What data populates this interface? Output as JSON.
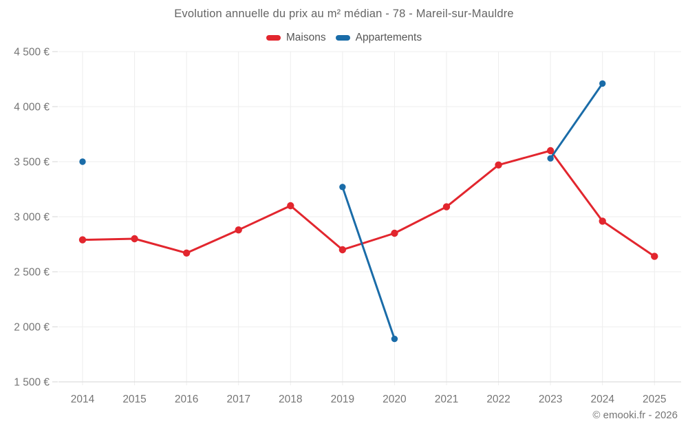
{
  "title": "Evolution annuelle du prix au m² médian - 78 - Mareil-sur-Mauldre",
  "legend": {
    "items": [
      {
        "label": "Maisons",
        "color": "#e2262e"
      },
      {
        "label": "Appartements",
        "color": "#1a6ca8"
      }
    ]
  },
  "copyright": "© emooki.fr - 2026",
  "colors": {
    "grid": "#ededed",
    "axis_line": "#d6d6d6",
    "tick_text": "#757575"
  },
  "chart_data": {
    "type": "line",
    "title": "Evolution annuelle du prix au m² médian - 78 - Mareil-sur-Mauldre",
    "xlabel": "",
    "ylabel": "",
    "x": [
      2014,
      2015,
      2016,
      2017,
      2018,
      2019,
      2020,
      2021,
      2022,
      2023,
      2024,
      2025
    ],
    "ylim": [
      1500,
      4500
    ],
    "y_tick_values": [
      4500,
      4000,
      3500,
      3000,
      2500,
      2000,
      1500
    ],
    "y_tick_labels": [
      "4 500 €",
      "4 000 €",
      "3 500 €",
      "3 000 €",
      "2 500 €",
      "2 000 €",
      "1 500 €"
    ],
    "grid": true,
    "legend_position": "top",
    "series": [
      {
        "name": "Maisons",
        "color": "#e2262e",
        "points": [
          [
            2014,
            2790
          ],
          [
            2015,
            2800
          ],
          [
            2016,
            2670
          ],
          [
            2017,
            2880
          ],
          [
            2018,
            3100
          ],
          [
            2019,
            2700
          ],
          [
            2020,
            2850
          ],
          [
            2021,
            3090
          ],
          [
            2022,
            3470
          ],
          [
            2023,
            3600
          ],
          [
            2024,
            2960
          ],
          [
            2025,
            2640
          ]
        ]
      },
      {
        "name": "Appartements",
        "color": "#1a6ca8",
        "points": [
          [
            2014,
            3500
          ],
          [
            2019,
            3270
          ],
          [
            2020,
            1890
          ],
          [
            2023,
            3530
          ],
          [
            2024,
            4210
          ]
        ]
      }
    ]
  }
}
